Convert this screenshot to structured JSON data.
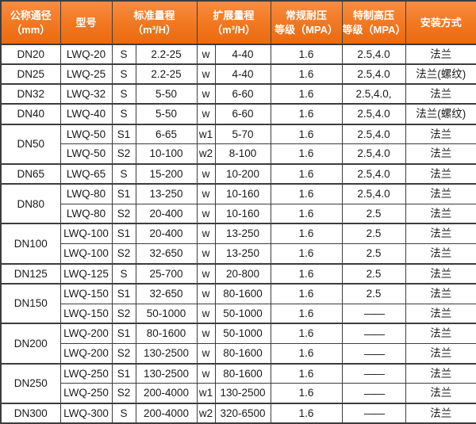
{
  "colors": {
    "header_bg_top": "#f88c42",
    "header_bg_bottom": "#eb6a10",
    "header_text": "#ffffff",
    "border": "#3d3d3d",
    "cell_bg": "#ffffff",
    "cell_text": "#1a1a1a"
  },
  "table": {
    "headers": [
      "公称通径\n（mm）",
      "型号",
      "标准量程\n（m³/H）",
      "扩展量程\n（m³/H）",
      "常规耐压\n等级（MPA）",
      "特制高压\n等级（MPA）",
      "安装方式"
    ],
    "rows": [
      {
        "dn": "DN20",
        "span": 1,
        "model": "LWQ-20",
        "s": "S",
        "std": "2.2-25",
        "w": "w",
        "ext": "4-40",
        "cp": "1.6",
        "hp": "2.5,4.0",
        "inst": "法兰"
      },
      {
        "dn": "DN25",
        "span": 1,
        "model": "LWQ-25",
        "s": "S",
        "std": "2.2-25",
        "w": "w",
        "ext": "4-40",
        "cp": "1.6",
        "hp": "2.5,4.0",
        "inst": "法兰(螺纹)"
      },
      {
        "dn": "DN32",
        "span": 1,
        "model": "LWQ-32",
        "s": "S",
        "std": "5-50",
        "w": "w",
        "ext": "6-60",
        "cp": "1.6",
        "hp": "2.5,4.0,",
        "inst": "法兰"
      },
      {
        "dn": "DN40",
        "span": 1,
        "model": "LWQ-40",
        "s": "S",
        "std": "5-50",
        "w": "w",
        "ext": "6-60",
        "cp": "1.6",
        "hp": "2.5,4.0",
        "inst": "法兰(螺纹)"
      },
      {
        "dn": "DN50",
        "span": 2,
        "model": "LWQ-50",
        "s": "S1",
        "std": "6-65",
        "w": "w1",
        "ext": "5-70",
        "cp": "1.6",
        "hp": "2.5,4.0",
        "inst": "法兰"
      },
      {
        "model": "LWQ-50",
        "s": "S2",
        "std": "10-100",
        "w": "w2",
        "ext": "8-100",
        "cp": "1.6",
        "hp": "2.5,4.0",
        "inst": "法兰"
      },
      {
        "dn": "DN65",
        "span": 1,
        "model": "LWQ-65",
        "s": "S",
        "std": "15-200",
        "w": "w",
        "ext": "10-200",
        "cp": "1.6",
        "hp": "2.5,4.0",
        "inst": "法兰"
      },
      {
        "dn": "DN80",
        "span": 2,
        "model": "LWQ-80",
        "s": "S1",
        "std": "13-250",
        "w": "w",
        "ext": "10-160",
        "cp": "1.6",
        "hp": "2.5,4.0",
        "inst": "法兰"
      },
      {
        "model": "LWQ-80",
        "s": "S2",
        "std": "20-400",
        "w": "w",
        "ext": "10-160",
        "cp": "1.6",
        "hp": "2.5",
        "inst": "法兰"
      },
      {
        "dn": "DN100",
        "span": 2,
        "model": "LWQ-100",
        "s": "S1",
        "std": "20-400",
        "w": "w",
        "ext": "13-250",
        "cp": "1.6",
        "hp": "2.5",
        "inst": "法兰"
      },
      {
        "model": "LWQ-100",
        "s": "S2",
        "std": "32-650",
        "w": "w",
        "ext": "13-250",
        "cp": "1.6",
        "hp": "2.5",
        "inst": "法兰"
      },
      {
        "dn": "DN125",
        "span": 1,
        "model": "LWQ-125",
        "s": "S",
        "std": "25-700",
        "w": "w",
        "ext": "20-800",
        "cp": "1.6",
        "hp": "2.5",
        "inst": "法兰"
      },
      {
        "dn": "DN150",
        "span": 2,
        "model": "LWQ-150",
        "s": "S1",
        "std": "32-650",
        "w": "w",
        "ext": "80-1600",
        "cp": "1.6",
        "hp": "2.5",
        "inst": "法兰"
      },
      {
        "model": "LWQ-150",
        "s": "S2",
        "std": "50-1000",
        "w": "w",
        "ext": "50-1000",
        "cp": "1.6",
        "hp": "——",
        "inst": "法兰"
      },
      {
        "dn": "DN200",
        "span": 2,
        "model": "LWQ-200",
        "s": "S1",
        "std": "80-1600",
        "w": "w",
        "ext": "50-1000",
        "cp": "1.6",
        "hp": "——",
        "inst": "法兰"
      },
      {
        "model": "LWQ-200",
        "s": "S2",
        "std": "130-2500",
        "w": "w",
        "ext": "80-1600",
        "cp": "1.6",
        "hp": "——",
        "inst": "法兰"
      },
      {
        "dn": "DN250",
        "span": 2,
        "model": "LWQ-250",
        "s": "S1",
        "std": "130-2500",
        "w": "w",
        "ext": "80-1600",
        "cp": "1.6",
        "hp": "——",
        "inst": "法兰"
      },
      {
        "model": "LWQ-250",
        "s": "S2",
        "std": "200-4000",
        "w": "w1",
        "ext": "130-2500",
        "cp": "1.6",
        "hp": "——",
        "inst": "法兰"
      },
      {
        "dn": "DN300",
        "span": 1,
        "model": "LWQ-300",
        "s": "S",
        "std": "200-4000",
        "w": "w2",
        "ext": "320-6500",
        "cp": "1.6",
        "hp": "——",
        "inst": "法兰"
      }
    ]
  }
}
